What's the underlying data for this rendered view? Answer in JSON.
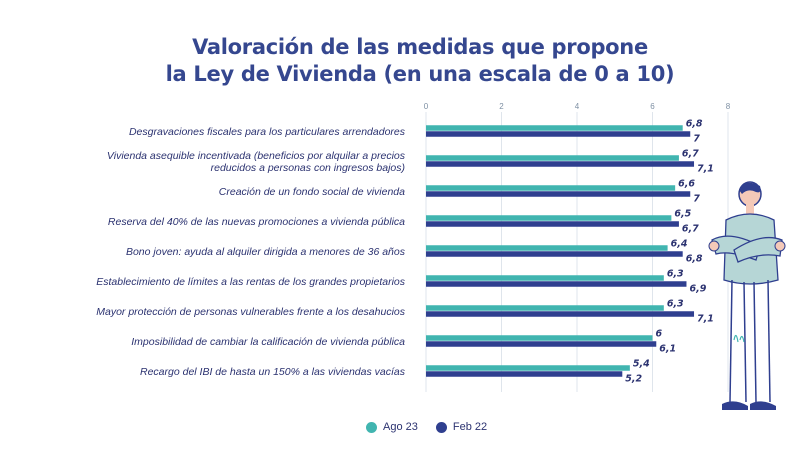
{
  "title_line1": "Valoración de las medidas que propone",
  "title_line2": "la Ley de Vivienda (en una escala de 0 a 10)",
  "colors": {
    "ago23": "#41b5b0",
    "feb22": "#2f3f8f",
    "title": "#35478f"
  },
  "chart_data": {
    "type": "bar",
    "orientation": "horizontal",
    "title": "Valoración de las medidas que propone la Ley de Vivienda (en una escala de 0 a 10)",
    "xlim": [
      0,
      8
    ],
    "xticks": [
      0,
      2,
      4,
      6,
      8
    ],
    "grid": true,
    "legend_position": "bottom",
    "categories": [
      [
        "Desgravaciones fiscales para los particulares arrendadores"
      ],
      [
        "Vivienda asequible incentivada  (beneficios por alquilar a precios",
        "reducidos a personas con ingresos bajos)"
      ],
      [
        "Creación de un fondo social de vivienda"
      ],
      [
        "Reserva del 40% de las nuevas promociones a vivienda pública"
      ],
      [
        "Bono joven: ayuda al alquiler dirigida a menores de 36 años"
      ],
      [
        "Establecimiento de límites a las rentas de los grandes propietarios"
      ],
      [
        "Mayor protección de personas vulnerables frente a los desahucios"
      ],
      [
        "Imposibilidad de cambiar la calificación de vivienda pública"
      ],
      [
        "Recargo del IBI de hasta un 150% a las viviendas vacías"
      ]
    ],
    "series": [
      {
        "name": "Ago 23",
        "values": [
          6.8,
          6.7,
          6.6,
          6.5,
          6.4,
          6.3,
          6.3,
          6,
          5.4
        ],
        "labels": [
          "6,8",
          "6,7",
          "6,6",
          "6,5",
          "6,4",
          "6,3",
          "6,3",
          "6",
          "5,4"
        ]
      },
      {
        "name": "Feb 22",
        "values": [
          7,
          7.1,
          7,
          6.7,
          6.8,
          6.9,
          7.1,
          6.1,
          5.2
        ],
        "labels": [
          "7",
          "7,1",
          "7",
          "6,7",
          "6,8",
          "6,9",
          "7,1",
          "6,1",
          "5,2"
        ]
      }
    ]
  },
  "legend": {
    "ago23": "Ago 23",
    "feb22": "Feb 22"
  }
}
